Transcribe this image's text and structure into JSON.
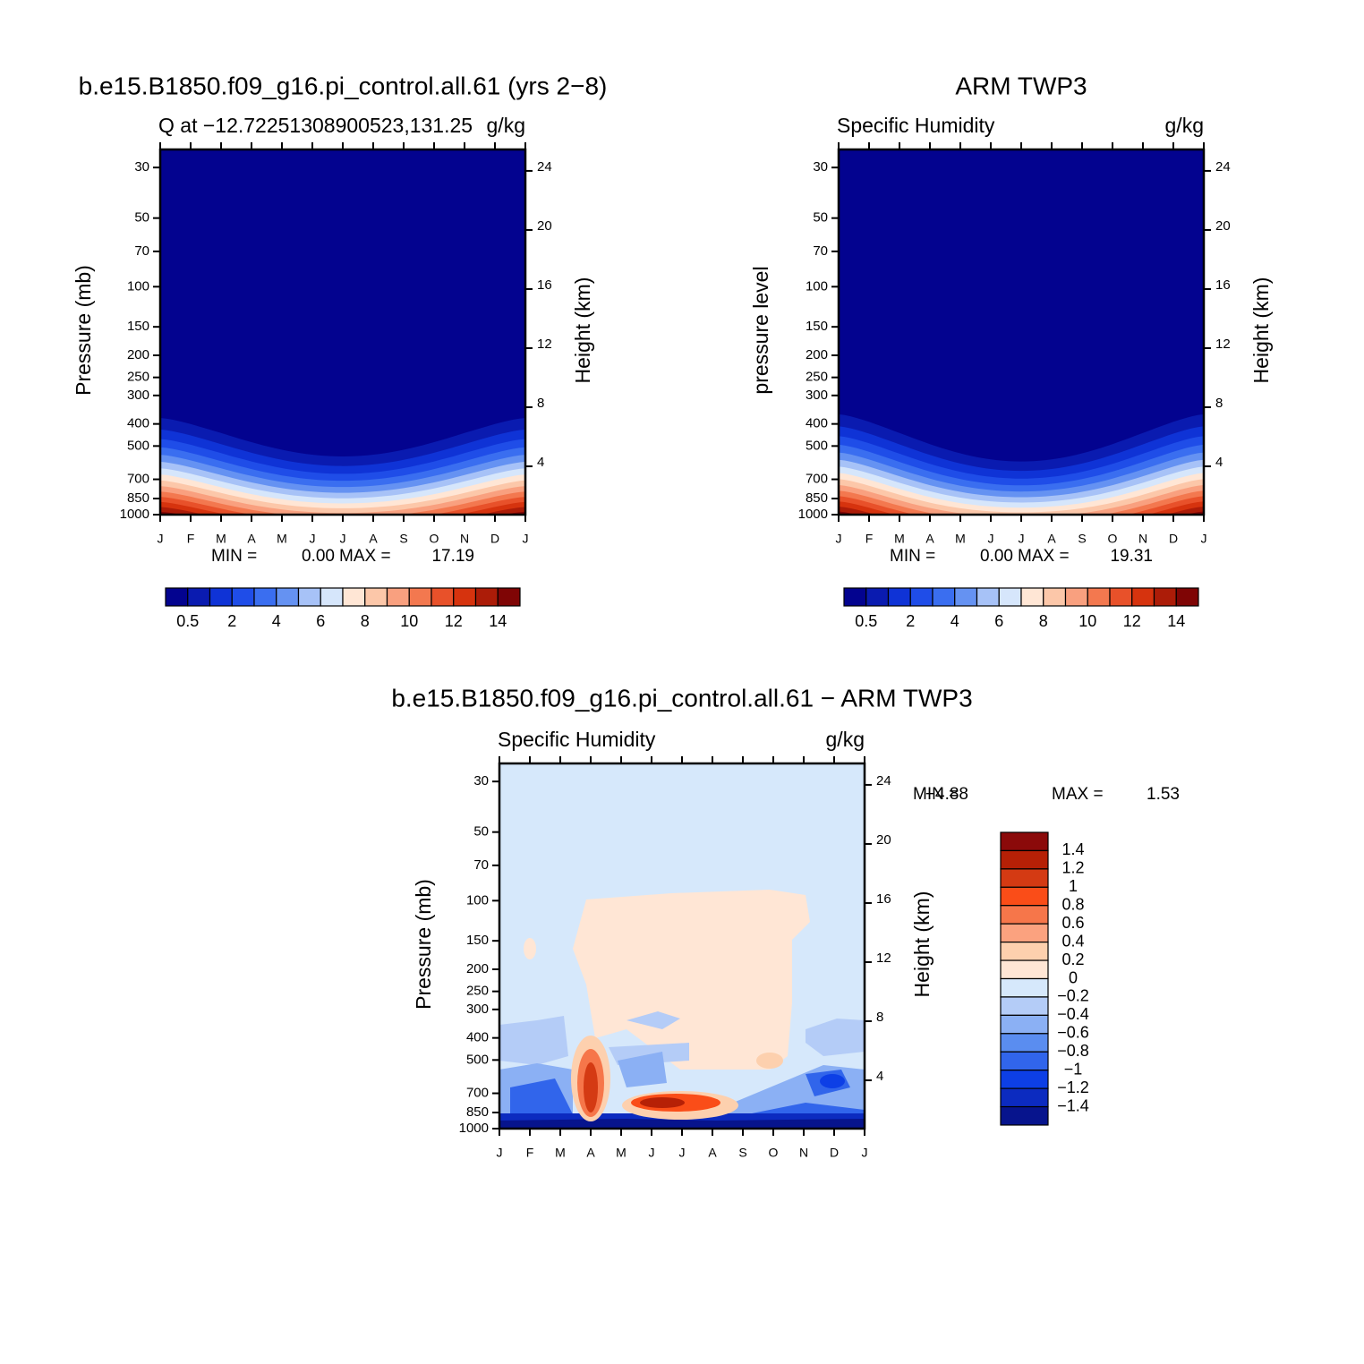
{
  "chart_data": [
    {
      "type": "contour",
      "title": "b.e15.B1850.f09_g16.pi_control.all.61 (yrs 2−8)",
      "subtitle_left": "Q at −12.72251308900523,131.25",
      "subtitle_right": "g/kg",
      "ylabel": "Pressure (mb)",
      "y2label": "Height (km)",
      "categories": [
        "J",
        "F",
        "M",
        "A",
        "M",
        "J",
        "J",
        "A",
        "S",
        "O",
        "N",
        "D",
        "J"
      ],
      "ylim": [
        1000,
        25
      ],
      "log_y": true,
      "yticks": [
        30,
        50,
        70,
        100,
        150,
        200,
        250,
        300,
        400,
        500,
        700,
        850,
        1000
      ],
      "y2lim": [
        0.73,
        25.45
      ],
      "y2ticks": [
        4,
        8,
        12,
        16,
        20,
        24
      ],
      "min_text": "MIN =",
      "min": {
        "value": 0,
        "label": "0.00"
      },
      "max_text": "MAX =",
      "max": 17.19,
      "colorbar": {
        "orientation": "horizontal",
        "colors": [
          "#03038f",
          "#0a1bb0",
          "#0f33d6",
          "#1f4de8",
          "#3a6ef0",
          "#6592f2",
          "#a7c2f7",
          "#d6e6fb",
          "#ffe6d5",
          "#fcc7a9",
          "#f9a07f",
          "#f3784f",
          "#e8512a",
          "#d6330e",
          "#ac1c08",
          "#7f0505"
        ],
        "labels": [
          0.5,
          2,
          4,
          6,
          8,
          10,
          12,
          14
        ]
      }
    },
    {
      "type": "contour",
      "title": "ARM TWP3",
      "subtitle_left": "Specific Humidity",
      "subtitle_right": "g/kg",
      "ylabel": "pressure level",
      "y2label": "Height (km)",
      "categories": [
        "J",
        "F",
        "M",
        "A",
        "M",
        "J",
        "J",
        "A",
        "S",
        "O",
        "N",
        "D",
        "J"
      ],
      "ylim": [
        1000,
        25
      ],
      "log_y": true,
      "yticks": [
        30,
        50,
        70,
        100,
        150,
        200,
        250,
        300,
        400,
        500,
        700,
        850,
        1000
      ],
      "y2lim": [
        0.73,
        25.45
      ],
      "y2ticks": [
        4,
        8,
        12,
        16,
        20,
        24
      ],
      "min_text": "MIN =",
      "min": {
        "value": 0,
        "label": "0.00"
      },
      "max_text": "MAX =",
      "max": 19.31,
      "colorbar": {
        "orientation": "horizontal",
        "colors": [
          "#03038f",
          "#0a1bb0",
          "#0f33d6",
          "#1f4de8",
          "#3a6ef0",
          "#6592f2",
          "#a7c2f7",
          "#d6e6fb",
          "#ffe6d5",
          "#fcc7a9",
          "#f9a07f",
          "#f3784f",
          "#e8512a",
          "#d6330e",
          "#ac1c08",
          "#7f0505"
        ],
        "labels": [
          0.5,
          2,
          4,
          6,
          8,
          10,
          12,
          14
        ]
      }
    },
    {
      "type": "contour",
      "title": "b.e15.B1850.f09_g16.pi_control.all.61 − ARM TWP3",
      "subtitle_left": "Specific Humidity",
      "subtitle_right": "g/kg",
      "ylabel": "Pressure (mb)",
      "y2label": "Height (km)",
      "categories": [
        "J",
        "F",
        "M",
        "A",
        "M",
        "J",
        "J",
        "A",
        "S",
        "O",
        "N",
        "D",
        "J"
      ],
      "ylim": [
        1000,
        25
      ],
      "log_y": true,
      "yticks": [
        30,
        50,
        70,
        100,
        150,
        200,
        250,
        300,
        400,
        500,
        700,
        850,
        1000
      ],
      "y2lim": [
        0.73,
        25.45
      ],
      "y2ticks": [
        4,
        8,
        12,
        16,
        20,
        24
      ],
      "min_text": "MIN =",
      "min": {
        "value": -4.88,
        "label": "−4.88"
      },
      "max_text": "MAX =",
      "max": 1.53,
      "colorbar": {
        "orientation": "vertical",
        "colors": [
          "#8b0a0a",
          "#b62006",
          "#d43a13",
          "#fa4d18",
          "#f6764a",
          "#fba27f",
          "#fdd0ae",
          "#ffe6d5",
          "#d6e8fb",
          "#b4ccf7",
          "#8bb0f4",
          "#5a8df0",
          "#3165eb",
          "#0d3fe6",
          "#0c2bc0",
          "#07148d"
        ],
        "labels": [
          1.4,
          1.2,
          1,
          0.8,
          0.6,
          0.4,
          0.2,
          0,
          {
            "value": -0.2,
            "label": "−0.2"
          },
          {
            "value": -0.4,
            "label": "−0.4"
          },
          {
            "value": -0.6,
            "label": "−0.6"
          },
          {
            "value": -0.8,
            "label": "−0.8"
          },
          {
            "value": -1,
            "label": "−1"
          },
          {
            "value": -1.2,
            "label": "−1.2"
          },
          {
            "value": -1.4,
            "label": "−1.4"
          }
        ]
      }
    }
  ]
}
